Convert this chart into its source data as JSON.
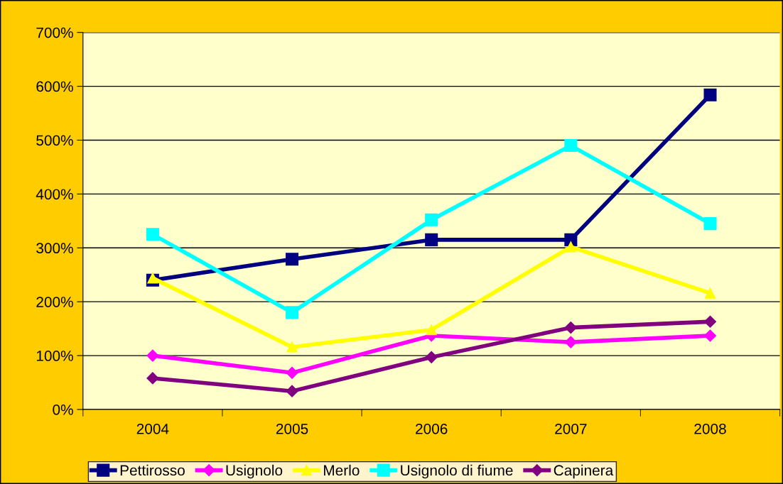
{
  "chart_data": {
    "type": "line",
    "categories": [
      "2004",
      "2005",
      "2006",
      "2007",
      "2008"
    ],
    "series": [
      {
        "name": "Pettirosso",
        "color": "#000080",
        "marker": "square",
        "values": [
          240,
          279,
          315,
          315,
          584
        ]
      },
      {
        "name": "Usignolo",
        "color": "#ff00ff",
        "marker": "diamond",
        "values": [
          100,
          68,
          137,
          125,
          137
        ]
      },
      {
        "name": "Merlo",
        "color": "#ffff00",
        "marker": "triangle",
        "values": [
          244,
          116,
          148,
          302,
          216
        ]
      },
      {
        "name": "Usignolo di fiume",
        "color": "#00ffff",
        "marker": "square",
        "values": [
          325,
          180,
          352,
          490,
          345
        ]
      },
      {
        "name": "Capinera",
        "color": "#800080",
        "marker": "diamond",
        "values": [
          58,
          34,
          97,
          152,
          163
        ]
      }
    ],
    "ylim": [
      0,
      700
    ],
    "yticks": [
      {
        "value": 0,
        "label": "0%"
      },
      {
        "value": 100,
        "label": "100%"
      },
      {
        "value": 200,
        "label": "200%"
      },
      {
        "value": 300,
        "label": "300%"
      },
      {
        "value": 400,
        "label": "400%"
      },
      {
        "value": 500,
        "label": "500%"
      },
      {
        "value": 600,
        "label": "600%"
      },
      {
        "value": 700,
        "label": "700%"
      }
    ],
    "grid": "y",
    "legend": "bottom",
    "line_style": "solid"
  }
}
